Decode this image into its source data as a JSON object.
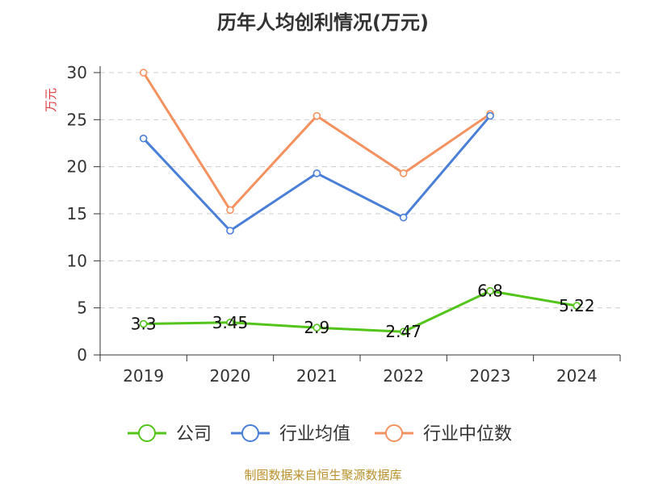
{
  "chart_data": {
    "type": "line",
    "title": "历年人均创利情况(万元)",
    "ylabel": "万元",
    "xlabel": "",
    "categories": [
      "2019",
      "2020",
      "2021",
      "2022",
      "2023",
      "2024"
    ],
    "ylim": [
      0,
      30
    ],
    "yticks": [
      0,
      5,
      10,
      15,
      20,
      25,
      30
    ],
    "grid": true,
    "legend_position": "bottom",
    "series": [
      {
        "name": "公司",
        "color": "#52c41a",
        "values": [
          3.3,
          3.45,
          2.9,
          2.47,
          6.8,
          5.22
        ],
        "labels": [
          "3.3",
          "3.45",
          "2.9",
          "2.47",
          "6.8",
          "5.22"
        ]
      },
      {
        "name": "行业均值",
        "color": "#4a7fd8",
        "values": [
          23.0,
          13.2,
          19.3,
          14.6,
          25.4,
          null
        ]
      },
      {
        "name": "行业中位数",
        "color": "#f4915e",
        "values": [
          30.0,
          15.4,
          25.4,
          19.3,
          25.6,
          null
        ]
      }
    ]
  },
  "footer": {
    "source": "制图数据来自恒生聚源数据库"
  },
  "colors": {
    "ylabel": "#e0393e",
    "axis": "#333333",
    "grid": "#cccccc"
  }
}
